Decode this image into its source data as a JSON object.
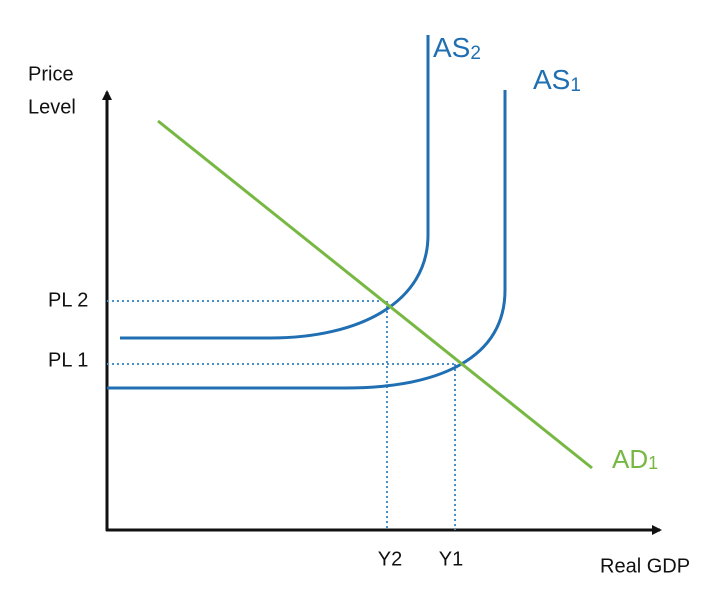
{
  "axes": {
    "y_label_line1": "Price",
    "y_label_line2": "Level",
    "x_label": "Real GDP"
  },
  "levels": {
    "pl2": "PL 2",
    "pl1": "PL 1",
    "y2": "Y2",
    "y1": "Y1"
  },
  "curves": {
    "as2": {
      "label": "AS",
      "subscript": "2"
    },
    "as1": {
      "label": "AS",
      "subscript": "1"
    },
    "ad1": {
      "label": "AD",
      "subscript": "1"
    }
  }
}
